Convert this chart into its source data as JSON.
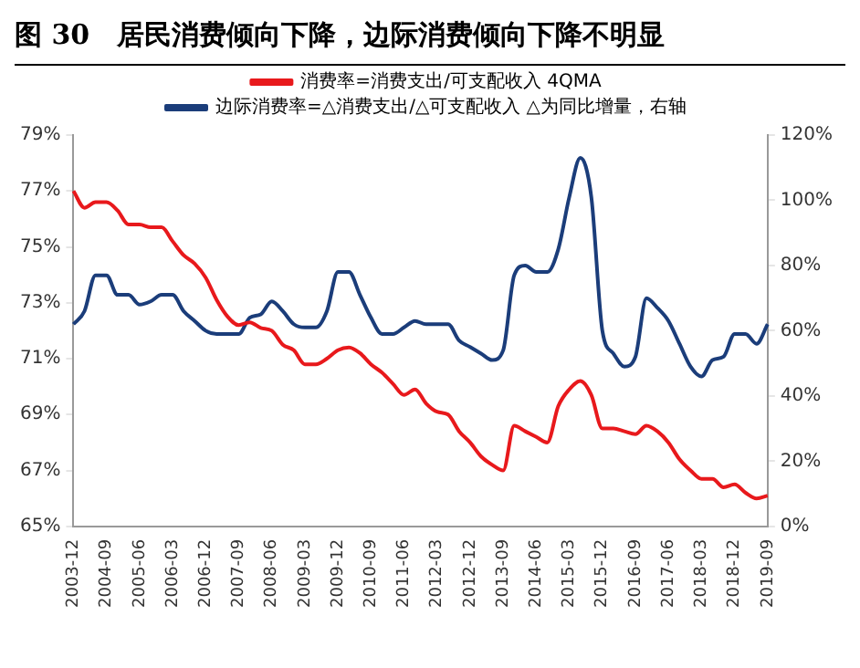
{
  "chart_data": {
    "type": "line",
    "title": "图 30　居民消费倾向下降，边际消费倾向下降不明显",
    "categories": [
      "2003-12",
      null,
      null,
      "2004-09",
      null,
      null,
      "2005-06",
      null,
      null,
      "2006-03",
      null,
      null,
      "2006-12",
      null,
      null,
      "2007-09",
      null,
      null,
      "2008-06",
      null,
      null,
      "2009-03",
      null,
      null,
      "2009-12",
      null,
      null,
      "2010-09",
      null,
      null,
      "2011-06",
      null,
      null,
      "2012-03",
      null,
      null,
      "2012-12",
      null,
      null,
      "2013-09",
      null,
      null,
      "2014-06",
      null,
      null,
      "2015-03",
      null,
      null,
      "2015-12",
      null,
      null,
      "2016-09",
      null,
      null,
      "2017-06",
      null,
      null,
      "2018-03",
      null,
      null,
      "2018-12",
      null,
      null,
      "2019-09"
    ],
    "series": [
      {
        "name": "消费率=消费支出/可支配收入 4QMA",
        "color": "#e8191c",
        "values": [
          77.0,
          76.4,
          76.6,
          76.6,
          76.3,
          75.8,
          75.8,
          75.7,
          75.7,
          75.2,
          74.7,
          74.4,
          73.9,
          73.1,
          72.5,
          72.2,
          72.3,
          72.1,
          72.0,
          71.5,
          71.3,
          70.8,
          70.8,
          71.0,
          71.3,
          71.4,
          71.2,
          70.8,
          70.5,
          70.1,
          69.7,
          69.9,
          69.4,
          69.1,
          69.0,
          68.4,
          68.0,
          67.5,
          67.2,
          67.0,
          68.6,
          68.4,
          68.2,
          68.0,
          69.3,
          69.9,
          70.2,
          69.7,
          68.5,
          68.5,
          68.4,
          68.3,
          68.6,
          68.4,
          68.0,
          67.4,
          67.0,
          66.7,
          66.7,
          66.4,
          66.5,
          66.2,
          66.0,
          66.1
        ]
      },
      {
        "name": "边际消费率=△消费支出/△可支配收入 △为同比增量，右轴",
        "color": "#1b3d7a",
        "axis": "y2",
        "values": [
          62,
          66,
          77,
          77,
          71,
          71,
          68,
          69,
          71,
          71,
          66,
          63,
          60,
          59,
          59,
          59,
          64,
          65,
          69,
          66,
          62,
          61,
          61,
          66,
          78,
          78,
          71,
          64,
          59,
          59,
          61,
          63,
          62,
          62,
          62,
          57,
          55,
          53,
          51,
          54,
          77,
          80,
          78,
          78,
          85,
          101,
          113,
          101,
          60,
          53,
          49,
          52,
          70,
          67,
          63,
          56,
          49,
          46,
          51,
          52,
          59,
          59,
          56,
          62
        ]
      }
    ],
    "ylim": [
      65,
      79
    ],
    "yticks": [
      {
        "value": 65,
        "label": "65%"
      },
      {
        "value": 67,
        "label": "67%"
      },
      {
        "value": 69,
        "label": "69%"
      },
      {
        "value": 71,
        "label": "71%"
      },
      {
        "value": 73,
        "label": "73%"
      },
      {
        "value": 75,
        "label": "75%"
      },
      {
        "value": 77,
        "label": "77%"
      },
      {
        "value": 79,
        "label": "79%"
      }
    ],
    "y2lim": [
      0,
      120
    ],
    "y2ticks": [
      {
        "value": 0,
        "label": "0%"
      },
      {
        "value": 20,
        "label": "20%"
      },
      {
        "value": 40,
        "label": "40%"
      },
      {
        "value": 60,
        "label": "60%"
      },
      {
        "value": 80,
        "label": "80%"
      },
      {
        "value": 100,
        "label": "100%"
      },
      {
        "value": 120,
        "label": "120%"
      }
    ],
    "grid": false,
    "legend": "top",
    "marker": "none",
    "line_style": "solid"
  }
}
